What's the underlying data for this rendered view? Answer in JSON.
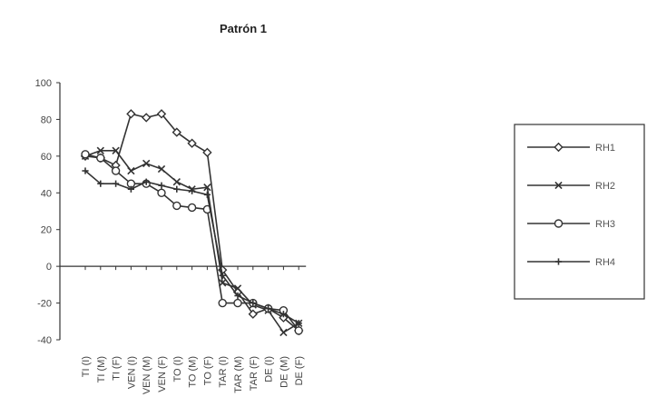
{
  "chart_data": {
    "type": "line",
    "title": "Patrón 1",
    "xlabel": "",
    "ylabel": "",
    "ylim": [
      -40,
      100
    ],
    "yticks": [
      -40,
      -20,
      0,
      20,
      40,
      60,
      80,
      100
    ],
    "grid": false,
    "legend_position": "right",
    "categories": [
      "TI (I)",
      "TI (M)",
      "TI (F)",
      "VEN (I)",
      "VEN (M)",
      "VEN (F)",
      "TO (I)",
      "TO (M)",
      "TO (F)",
      "TAR (I)",
      "TAR (M)",
      "TAR (F)",
      "DE (I)",
      "DE (M)",
      "DE (F)"
    ],
    "series": [
      {
        "name": "RH1",
        "marker": "diamond",
        "values": [
          60,
          59,
          55,
          83,
          81,
          83,
          73,
          67,
          62,
          -2,
          -14,
          -26,
          -23,
          -28,
          -35
        ]
      },
      {
        "name": "RH2",
        "marker": "x",
        "values": [
          60,
          63,
          63,
          52,
          56,
          53,
          46,
          42,
          43,
          -9,
          -12,
          -21,
          -24,
          -36,
          -31
        ]
      },
      {
        "name": "RH3",
        "marker": "circle",
        "values": [
          61,
          59,
          52,
          45,
          45,
          40,
          33,
          32,
          31,
          -20,
          -20,
          -20,
          -23,
          -24,
          -35
        ]
      },
      {
        "name": "RH4",
        "marker": "plus",
        "values": [
          52,
          45,
          45,
          42,
          46,
          44,
          42,
          41,
          39,
          -5,
          -16,
          -20,
          -23,
          -26,
          -31
        ]
      }
    ]
  }
}
